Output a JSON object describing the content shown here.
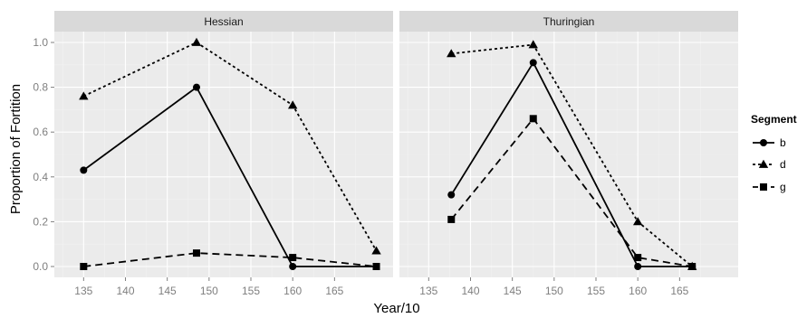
{
  "chart_data": {
    "type": "line",
    "xlabel": "Year/10",
    "ylabel": "Proportion of Fortition",
    "xlim": [
      131.5,
      172
    ],
    "ylim": [
      -0.05,
      1.05
    ],
    "x_ticks": [
      135,
      140,
      145,
      150,
      155,
      160,
      165
    ],
    "y_ticks": [
      0.0,
      0.2,
      0.4,
      0.6,
      0.8,
      1.0
    ],
    "x_tick_labels": [
      "135",
      "140",
      "145",
      "150",
      "155",
      "160",
      "165"
    ],
    "y_tick_labels": [
      "0.0",
      "0.2",
      "0.4",
      "0.6",
      "0.8",
      "1.0"
    ],
    "grid": true,
    "legend": {
      "title": "Segment",
      "placement": "right",
      "entries": [
        {
          "label": "b",
          "linetype": "solid",
          "shape": "circle"
        },
        {
          "label": "d",
          "linetype": "dotted",
          "shape": "triangle"
        },
        {
          "label": "g",
          "linetype": "dashed",
          "shape": "square"
        }
      ]
    },
    "colors": {
      "panel": "#ebebeb",
      "strip": "#d9d9d9",
      "grid_major": "#ffffff",
      "grid_minor": "#f2f2f2",
      "series": "#000000"
    },
    "panels": [
      {
        "title": "Hessian",
        "series": [
          {
            "name": "b",
            "x": [
              135,
              148.5,
              160,
              170
            ],
            "y": [
              0.43,
              0.8,
              0.0,
              0.0
            ]
          },
          {
            "name": "d",
            "x": [
              135,
              148.5,
              160,
              170
            ],
            "y": [
              0.76,
              1.0,
              0.72,
              0.07
            ]
          },
          {
            "name": "g",
            "x": [
              135,
              148.5,
              160,
              170
            ],
            "y": [
              0.0,
              0.06,
              0.04,
              0.0
            ]
          }
        ]
      },
      {
        "title": "Thuringian",
        "series": [
          {
            "name": "b",
            "x": [
              137.7,
              147.5,
              160,
              166.5
            ],
            "y": [
              0.32,
              0.91,
              0.0,
              0.0
            ]
          },
          {
            "name": "d",
            "x": [
              137.7,
              147.5,
              160,
              166.5
            ],
            "y": [
              0.95,
              0.99,
              0.2,
              0.0
            ]
          },
          {
            "name": "g",
            "x": [
              137.7,
              147.5,
              160,
              166.5
            ],
            "y": [
              0.21,
              0.66,
              0.04,
              0.0
            ]
          }
        ]
      }
    ]
  }
}
